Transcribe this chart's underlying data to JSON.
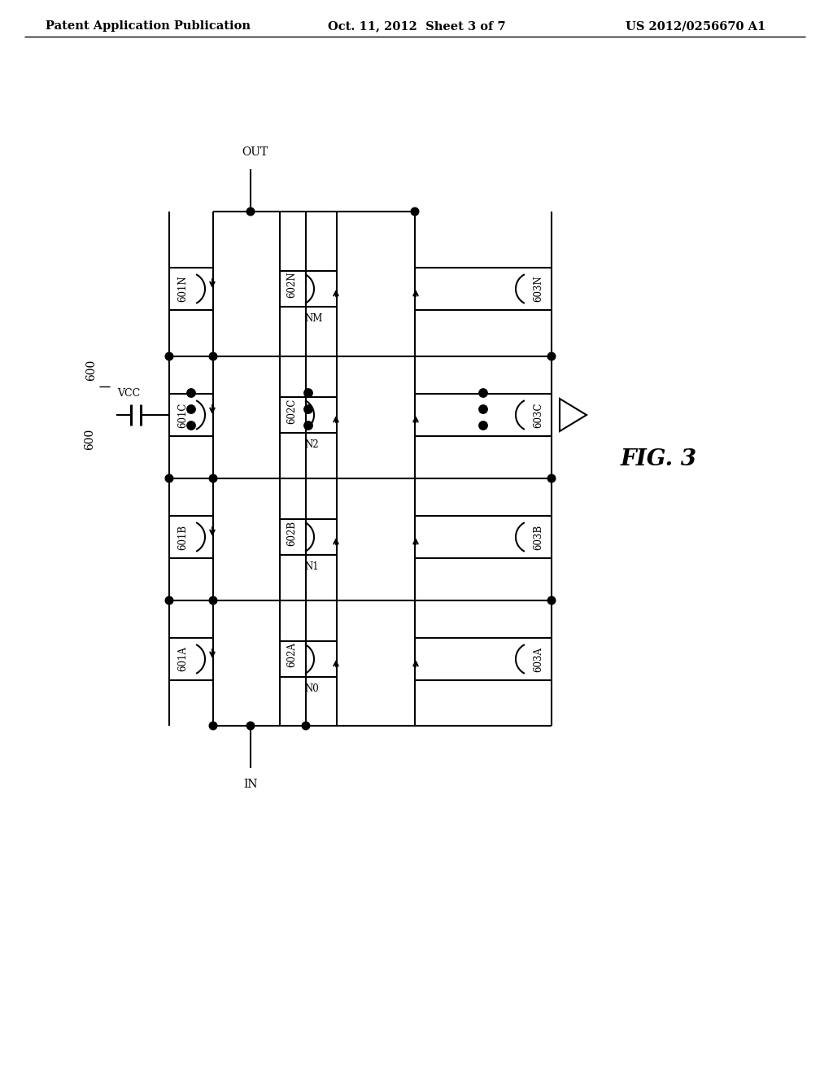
{
  "header_left": "Patent Application Publication",
  "header_center": "Oct. 11, 2012  Sheet 3 of 7",
  "header_right": "US 2012/0256670 A1",
  "fig_label": "FIG. 3",
  "circuit_id": "600",
  "bg_color": "#ffffff"
}
